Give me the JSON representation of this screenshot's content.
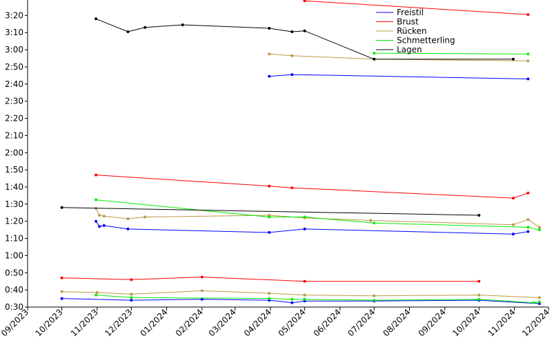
{
  "chart_data": {
    "type": "line",
    "title": "",
    "xlabel": "",
    "ylabel": "",
    "x_range": [
      "2023-09-01",
      "2024-12-01"
    ],
    "ylim": [
      30,
      209
    ],
    "grid": false,
    "legend_placement": "top-right",
    "y_ticks": [
      {
        "v": 30,
        "label": "0:30"
      },
      {
        "v": 40,
        "label": "0:40"
      },
      {
        "v": 50,
        "label": "0:50"
      },
      {
        "v": 60,
        "label": "1:00"
      },
      {
        "v": 70,
        "label": "1:10"
      },
      {
        "v": 80,
        "label": "1:20"
      },
      {
        "v": 90,
        "label": "1:30"
      },
      {
        "v": 100,
        "label": "1:40"
      },
      {
        "v": 110,
        "label": "1:50"
      },
      {
        "v": 120,
        "label": "2:00"
      },
      {
        "v": 130,
        "label": "2:10"
      },
      {
        "v": 140,
        "label": "2:20"
      },
      {
        "v": 150,
        "label": "2:30"
      },
      {
        "v": 160,
        "label": "2:40"
      },
      {
        "v": 170,
        "label": "2:50"
      },
      {
        "v": 180,
        "label": "3:00"
      },
      {
        "v": 190,
        "label": "3:10"
      },
      {
        "v": 200,
        "label": "3:20"
      }
    ],
    "x_ticks": [
      {
        "date": "2023-09-01",
        "label": "09/2023"
      },
      {
        "date": "2023-10-01",
        "label": "10/2023"
      },
      {
        "date": "2023-11-01",
        "label": "11/2023"
      },
      {
        "date": "2023-12-01",
        "label": "12/2023"
      },
      {
        "date": "2024-01-01",
        "label": "01/2024"
      },
      {
        "date": "2024-02-01",
        "label": "02/2024"
      },
      {
        "date": "2024-03-01",
        "label": "03/2024"
      },
      {
        "date": "2024-04-01",
        "label": "04/2024"
      },
      {
        "date": "2024-05-01",
        "label": "05/2024"
      },
      {
        "date": "2024-06-01",
        "label": "06/2024"
      },
      {
        "date": "2024-07-01",
        "label": "07/2024"
      },
      {
        "date": "2024-08-01",
        "label": "08/2024"
      },
      {
        "date": "2024-09-01",
        "label": "09/2024"
      },
      {
        "date": "2024-10-01",
        "label": "10/2024"
      },
      {
        "date": "2024-11-01",
        "label": "11/2024"
      },
      {
        "date": "2024-12-01",
        "label": "12/2024"
      }
    ],
    "series": [
      {
        "name": "Freistil",
        "color": "#0000ff",
        "lines": [
          [
            [
              "2023-10-01",
              35.0
            ],
            [
              "2023-12-01",
              34.0
            ],
            [
              "2024-02-01",
              34.5
            ],
            [
              "2024-03-31",
              34.0
            ],
            [
              "2024-04-20",
              32.5
            ],
            [
              "2024-05-01",
              33.5
            ],
            [
              "2024-07-01",
              33.5
            ],
            [
              "2024-10-01",
              34.0
            ],
            [
              "2024-11-23",
              32.0
            ]
          ],
          [
            [
              "2023-10-31",
              80.0
            ],
            [
              "2023-11-03",
              77.0
            ],
            [
              "2023-11-07",
              77.5
            ],
            [
              "2023-11-28",
              75.5
            ],
            [
              "2024-03-31",
              73.5
            ],
            [
              "2024-05-01",
              75.5
            ],
            [
              "2024-10-31",
              72.5
            ],
            [
              "2024-11-13",
              74.0
            ]
          ],
          [
            [
              "2024-03-31",
              164.5
            ],
            [
              "2024-04-20",
              165.5
            ],
            [
              "2024-11-13",
              163.0
            ]
          ]
        ]
      },
      {
        "name": "Brust",
        "color": "#ff0000",
        "lines": [
          [
            [
              "2023-10-01",
              47.0
            ],
            [
              "2023-12-01",
              46.0
            ],
            [
              "2024-02-01",
              47.5
            ],
            [
              "2024-05-01",
              45.0
            ],
            [
              "2024-10-01",
              45.0
            ]
          ],
          [
            [
              "2023-10-31",
              107.0
            ],
            [
              "2024-03-31",
              100.5
            ],
            [
              "2024-04-20",
              99.5
            ],
            [
              "2024-10-31",
              93.5
            ],
            [
              "2024-11-13",
              96.5
            ]
          ],
          [
            [
              "2024-05-01",
              208.5
            ],
            [
              "2024-11-13",
              200.5
            ]
          ]
        ]
      },
      {
        "name": "Rücken",
        "color": "#bb9944",
        "lines": [
          [
            [
              "2023-10-01",
              39.0
            ],
            [
              "2023-11-01",
              38.5
            ],
            [
              "2023-12-01",
              37.5
            ],
            [
              "2024-02-01",
              39.5
            ],
            [
              "2024-03-31",
              38.0
            ],
            [
              "2024-05-01",
              37.0
            ],
            [
              "2024-07-01",
              36.5
            ],
            [
              "2024-10-01",
              37.0
            ],
            [
              "2024-11-23",
              35.5
            ]
          ],
          [
            [
              "2023-10-31",
              87.5
            ],
            [
              "2023-11-03",
              83.5
            ],
            [
              "2023-11-07",
              83.0
            ],
            [
              "2023-11-28",
              81.5
            ],
            [
              "2023-12-13",
              82.5
            ],
            [
              "2024-03-31",
              83.5
            ],
            [
              "2024-05-01",
              82.0
            ],
            [
              "2024-06-28",
              80.5
            ],
            [
              "2024-10-31",
              78.0
            ],
            [
              "2024-11-13",
              81.0
            ],
            [
              "2024-11-23",
              76.5
            ]
          ],
          [
            [
              "2024-03-31",
              177.5
            ],
            [
              "2024-04-20",
              176.5
            ],
            [
              "2024-07-01",
              174.5
            ],
            [
              "2024-11-13",
              173.5
            ]
          ]
        ]
      },
      {
        "name": "Schmetterling",
        "color": "#00ee00",
        "lines": [
          [
            [
              "2023-10-31",
              37.0
            ],
            [
              "2023-12-01",
              35.5
            ],
            [
              "2024-03-31",
              35.0
            ],
            [
              "2024-04-20",
              34.5
            ],
            [
              "2024-05-01",
              34.5
            ],
            [
              "2024-07-01",
              34.0
            ],
            [
              "2024-10-01",
              34.5
            ],
            [
              "2024-11-18",
              32.5
            ],
            [
              "2024-11-23",
              33.0
            ]
          ],
          [
            [
              "2023-10-31",
              92.5
            ],
            [
              "2024-03-31",
              82.5
            ],
            [
              "2024-05-01",
              82.5
            ],
            [
              "2024-07-01",
              79.0
            ],
            [
              "2024-11-13",
              76.5
            ],
            [
              "2024-11-23",
              75.0
            ]
          ],
          [
            [
              "2024-07-01",
              178.0
            ],
            [
              "2024-11-13",
              177.5
            ]
          ]
        ]
      },
      {
        "name": "Lagen",
        "color": "#000000",
        "lines": [
          [
            [
              "2023-10-01",
              88.0
            ],
            [
              "2024-10-01",
              83.5
            ]
          ],
          [
            [
              "2023-10-31",
              198.0
            ],
            [
              "2023-11-28",
              190.5
            ],
            [
              "2023-12-13",
              193.0
            ],
            [
              "2024-01-15",
              194.5
            ],
            [
              "2024-03-31",
              192.5
            ],
            [
              "2024-04-20",
              190.5
            ],
            [
              "2024-05-01",
              191.0
            ],
            [
              "2024-07-01",
              174.5
            ],
            [
              "2024-10-31",
              174.5
            ]
          ]
        ]
      }
    ]
  }
}
